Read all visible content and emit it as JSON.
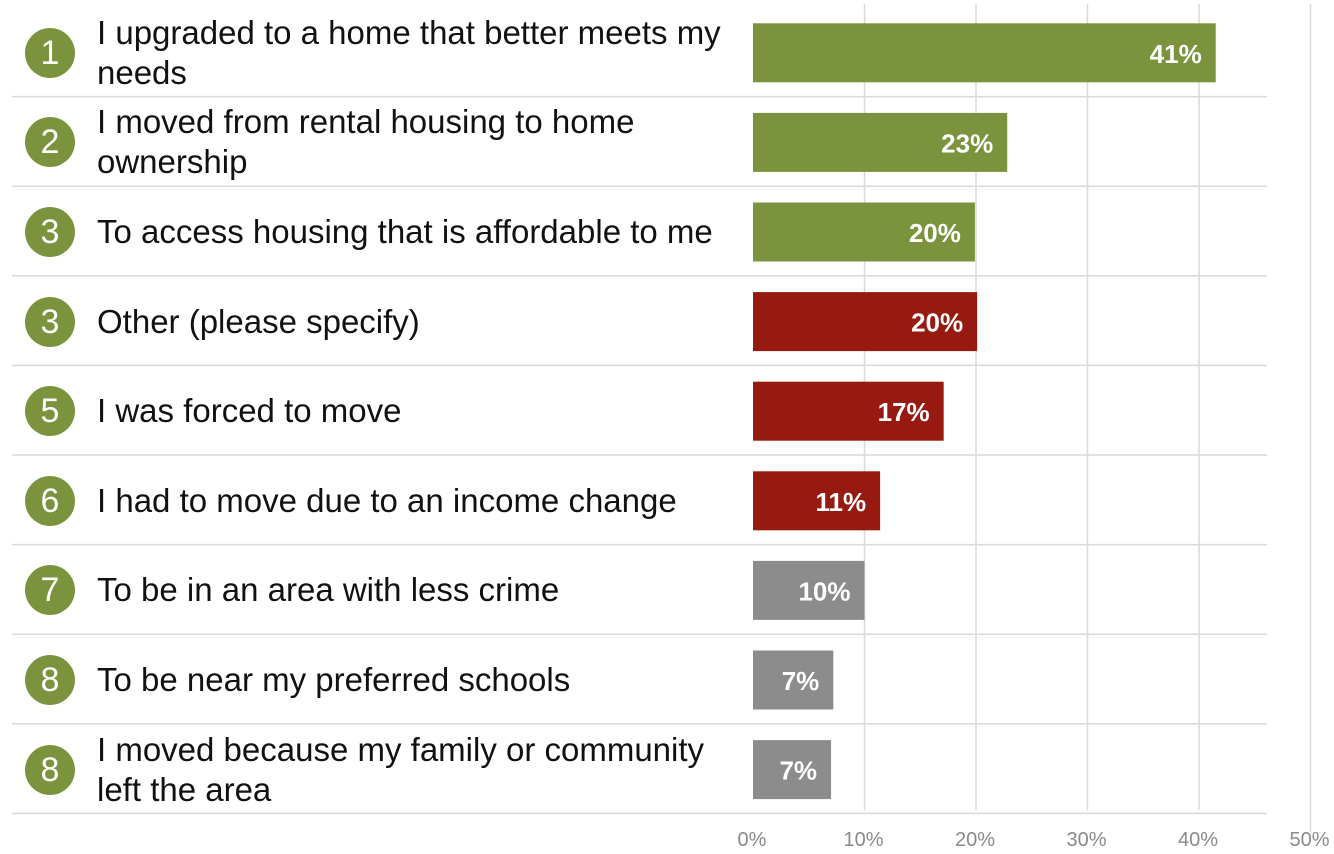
{
  "chart_data": {
    "type": "bar",
    "orientation": "horizontal",
    "title": "",
    "xlabel": "",
    "ylabel": "",
    "xlim": [
      0,
      50
    ],
    "grid": true,
    "legend": "none",
    "tick_labels": [
      "0%",
      "10%",
      "20%",
      "30%",
      "40%",
      "50%"
    ],
    "ranks": [
      "1",
      "2",
      "3",
      "3",
      "5",
      "6",
      "7",
      "8",
      "8"
    ],
    "categories": [
      "I upgraded to a home that better meets my needs",
      "I moved from rental housing to home ownership",
      "To access housing that is affordable to me",
      "Other (please specify)",
      "I was forced to move",
      "I had to move due to an income change",
      "To be in an area with less crime",
      "To be near my preferred schools",
      "I moved because my family or community left the area"
    ],
    "values": [
      41.5,
      22.8,
      19.9,
      20.1,
      17.1,
      11.4,
      10.0,
      7.2,
      7.0
    ],
    "data_labels": [
      "41%",
      "23%",
      "20%",
      "20%",
      "17%",
      "11%",
      "10%",
      "7%",
      "7%"
    ],
    "colors": [
      "#7a933c",
      "#7a933c",
      "#7a933c",
      "#961a0f",
      "#961a0f",
      "#961a0f",
      "#8c8c8c",
      "#8c8c8c",
      "#8c8c8c"
    ]
  }
}
